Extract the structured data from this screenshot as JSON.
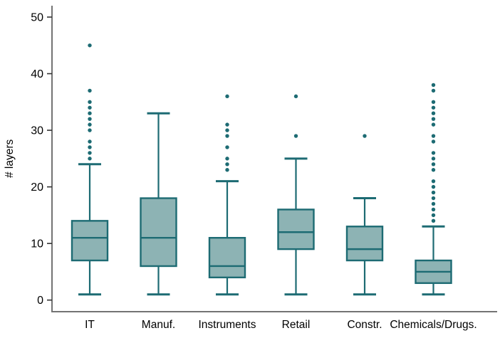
{
  "chart_data": {
    "type": "boxplot",
    "title": "",
    "xlabel": "",
    "ylabel": "# layers",
    "ylim": [
      0,
      52
    ],
    "yticks": [
      0,
      10,
      20,
      30,
      40,
      50
    ],
    "grid": false,
    "legend": false,
    "categories": [
      "IT",
      "Manuf.",
      "Instruments",
      "Retail",
      "Constr.",
      "Chemicals/Drugs."
    ],
    "boxes": [
      {
        "category": "IT",
        "whisker_low": 1,
        "q1": 7,
        "median": 11,
        "q3": 14,
        "whisker_high": 24,
        "outliers": [
          25,
          26,
          27,
          28,
          30,
          31,
          32,
          33,
          34,
          35,
          37,
          45
        ]
      },
      {
        "category": "Manuf.",
        "whisker_low": 1,
        "q1": 6,
        "median": 11,
        "q3": 18,
        "whisker_high": 33,
        "outliers": []
      },
      {
        "category": "Instruments",
        "whisker_low": 1,
        "q1": 4,
        "median": 6,
        "q3": 11,
        "whisker_high": 21,
        "outliers": [
          23,
          24,
          25,
          27,
          29,
          30,
          31,
          36
        ]
      },
      {
        "category": "Retail",
        "whisker_low": 1,
        "q1": 9,
        "median": 12,
        "q3": 16,
        "whisker_high": 25,
        "outliers": [
          29,
          36
        ]
      },
      {
        "category": "Constr.",
        "whisker_low": 1,
        "q1": 7,
        "median": 9,
        "q3": 13,
        "whisker_high": 18,
        "outliers": [
          29
        ]
      },
      {
        "category": "Chemicals/Drugs.",
        "whisker_low": 1,
        "q1": 3,
        "median": 5,
        "q3": 7,
        "whisker_high": 13,
        "outliers": [
          14,
          15,
          16,
          17,
          18,
          19,
          20,
          21,
          23,
          24,
          25,
          26,
          28,
          29,
          31,
          32,
          33,
          34,
          35,
          37,
          38
        ]
      }
    ],
    "colors": {
      "box_fill": "#8db3b4",
      "box_stroke": "#1d6b73",
      "outlier": "#1d6b73",
      "axis_line": "#737373",
      "tick": "#333333",
      "text": "#000000",
      "background": "#ffffff"
    }
  }
}
